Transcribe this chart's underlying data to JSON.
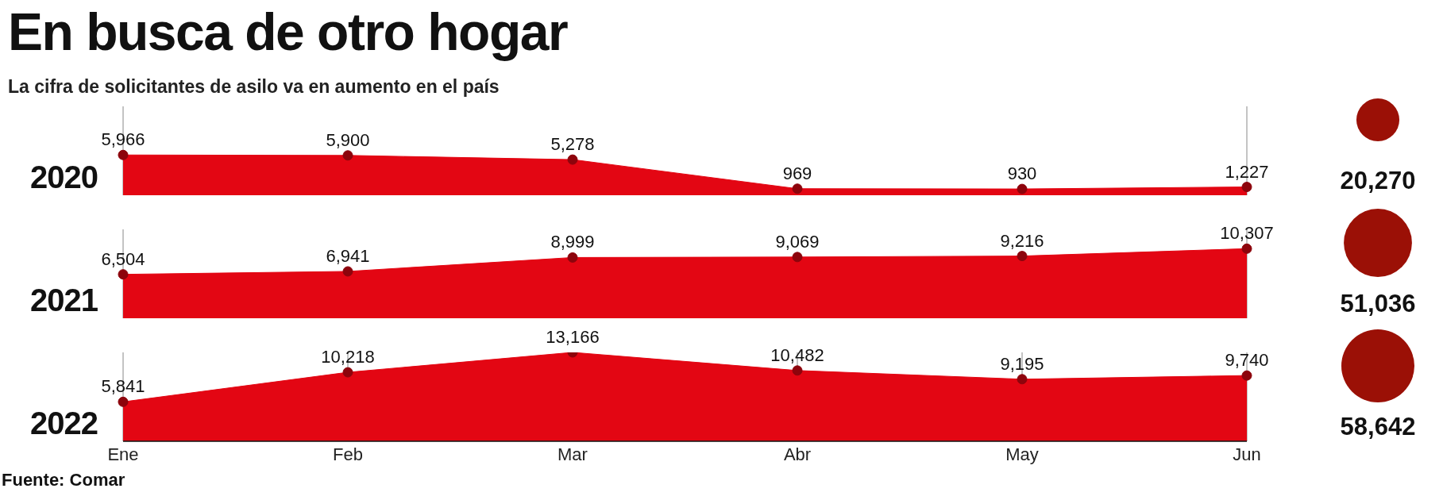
{
  "chart_data": [
    {
      "type": "area",
      "title": "En busca de otro hogar",
      "subtitle": "La cifra de solicitantes de asilo va en aumento en el país",
      "ylabel": "2020",
      "categories": [
        null,
        null,
        null,
        null,
        null,
        null
      ],
      "series": [
        {
          "color": "#e30613",
          "values": [
            5966,
            5900,
            5278,
            969,
            930,
            1227
          ],
          "value_labels": [
            "5,966",
            "5,900",
            "5,278",
            "969",
            "930",
            "1,227"
          ]
        }
      ],
      "marker": "circle",
      "grid": "x",
      "tick_labels": false
    },
    {
      "type": "area",
      "ylabel": "2021",
      "categories": [
        null,
        null,
        null,
        null,
        null,
        null
      ],
      "series": [
        {
          "color": "#e30613",
          "values": [
            6504,
            6941,
            8999,
            9069,
            9216,
            10307
          ],
          "value_labels": [
            "6,504",
            "6,941",
            "8,999",
            "9,069",
            "9,216",
            "10,307"
          ]
        }
      ],
      "marker": "circle",
      "grid": "x",
      "tick_labels": false
    },
    {
      "type": "area",
      "ylabel": "2022",
      "categories": [
        "Ene",
        "Feb",
        "Mar",
        "Abr",
        "May",
        "Jun"
      ],
      "series": [
        {
          "color": "#e30613",
          "values": [
            5841,
            10218,
            13166,
            10482,
            9195,
            9740
          ],
          "value_labels": [
            "5,841",
            "10,218",
            "13,166",
            "10,482",
            "9,195",
            "9,740"
          ]
        }
      ],
      "marker": "circle",
      "grid": "x",
      "tick_labels": "x",
      "annotations": [
        "Fuente: Comar"
      ]
    },
    {
      "type": "other",
      "values": [
        20270,
        51036,
        58642
      ],
      "value_labels": [
        "20,270",
        "51,036",
        "58,642"
      ],
      "color": "#9b1006"
    }
  ]
}
